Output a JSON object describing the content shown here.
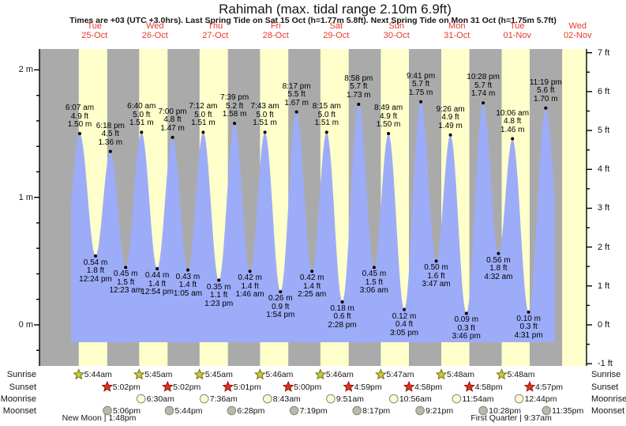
{
  "header": {
    "title": "Rahimah (max. tidal range 2.10m 6.9ft)",
    "subtitle": "Times are +03 (UTC +3.0hrs). Last Spring Tide on Sat 15 Oct (h=1.77m 5.8ft). Next Spring Tide on Mon 31 Oct (h=1.75m 5.7ft)"
  },
  "days": [
    {
      "name": "Tue",
      "date": "25-Oct"
    },
    {
      "name": "Wed",
      "date": "26-Oct"
    },
    {
      "name": "Thu",
      "date": "27-Oct"
    },
    {
      "name": "Fri",
      "date": "28-Oct"
    },
    {
      "name": "Sat",
      "date": "29-Oct"
    },
    {
      "name": "Sun",
      "date": "30-Oct"
    },
    {
      "name": "Mon",
      "date": "31-Oct"
    },
    {
      "name": "Tue",
      "date": "01-Nov"
    },
    {
      "name": "Wed",
      "date": "02-Nov"
    }
  ],
  "axes": {
    "left_labels": [
      {
        "value": 2,
        "text": "2 m"
      },
      {
        "value": 1,
        "text": "1 m"
      },
      {
        "value": 0,
        "text": "0 m"
      }
    ],
    "right_labels": [
      {
        "value": 7,
        "text": "7 ft"
      },
      {
        "value": 6,
        "text": "6 ft"
      },
      {
        "value": 5,
        "text": "5 ft"
      },
      {
        "value": 4,
        "text": "4 ft"
      },
      {
        "value": 3,
        "text": "3 ft"
      },
      {
        "value": 2,
        "text": "2 ft"
      },
      {
        "value": 1,
        "text": "1 ft"
      },
      {
        "value": 0,
        "text": "0 ft"
      },
      {
        "value": -1,
        "text": "-1 ft"
      }
    ]
  },
  "chart_data": {
    "type": "area",
    "title": "Rahimah (max. tidal range 2.10m 6.9ft)",
    "x_axis_days": [
      "Tue 25-Oct",
      "Wed 26-Oct",
      "Thu 27-Oct",
      "Fri 28-Oct",
      "Sat 29-Oct",
      "Sun 30-Oct",
      "Mon 31-Oct",
      "Tue 01-Nov",
      "Wed 02-Nov"
    ],
    "ylabel_left": "meters",
    "ylabel_right": "feet",
    "ylim_m": [
      -0.32,
      2.16
    ],
    "ylim_ft": [
      -1,
      7
    ],
    "grid": false,
    "tide_events": [
      {
        "day": 0,
        "hours": 6.117,
        "time": "6:07 am",
        "m": "1.50 m",
        "ft": "4.9 ft",
        "height_m": 1.5,
        "type": "high"
      },
      {
        "day": 0,
        "hours": 12.4,
        "time": "12:24 pm",
        "m": "0.54 m",
        "ft": "1.8 ft",
        "height_m": 0.54,
        "type": "low"
      },
      {
        "day": 0,
        "hours": 18.3,
        "time": "6:18 pm",
        "m": "1.36 m",
        "ft": "4.5 ft",
        "height_m": 1.36,
        "type": "high"
      },
      {
        "day": 1,
        "hours": 0.383,
        "time": "12:23 am",
        "m": "0.45 m",
        "ft": "1.5 ft",
        "height_m": 0.45,
        "type": "low"
      },
      {
        "day": 1,
        "hours": 6.667,
        "time": "6:40 am",
        "m": "1.51 m",
        "ft": "5.0 ft",
        "height_m": 1.51,
        "type": "high"
      },
      {
        "day": 1,
        "hours": 12.9,
        "time": "12:54 pm",
        "m": "0.44 m",
        "ft": "1.4 ft",
        "height_m": 0.44,
        "type": "low"
      },
      {
        "day": 1,
        "hours": 19.0,
        "time": "7:00 pm",
        "m": "1.47 m",
        "ft": "4.8 ft",
        "height_m": 1.47,
        "type": "high"
      },
      {
        "day": 2,
        "hours": 1.083,
        "time": "1:05 am",
        "m": "0.43 m",
        "ft": "1.4 ft",
        "height_m": 0.43,
        "type": "low"
      },
      {
        "day": 2,
        "hours": 7.2,
        "time": "7:12 am",
        "m": "1.51 m",
        "ft": "5.0 ft",
        "height_m": 1.51,
        "type": "high"
      },
      {
        "day": 2,
        "hours": 13.383,
        "time": "1:23 pm",
        "m": "0.35 m",
        "ft": "1.1 ft",
        "height_m": 0.35,
        "type": "low"
      },
      {
        "day": 2,
        "hours": 19.65,
        "time": "7:39 pm",
        "m": "1.58 m",
        "ft": "5.2 ft",
        "height_m": 1.58,
        "type": "high"
      },
      {
        "day": 3,
        "hours": 1.767,
        "time": "1:46 am",
        "m": "0.42 m",
        "ft": "1.4 ft",
        "height_m": 0.42,
        "type": "low"
      },
      {
        "day": 3,
        "hours": 7.717,
        "time": "7:43 am",
        "m": "1.51 m",
        "ft": "5.0 ft",
        "height_m": 1.51,
        "type": "high"
      },
      {
        "day": 3,
        "hours": 13.9,
        "time": "1:54 pm",
        "m": "0.26 m",
        "ft": "0.9 ft",
        "height_m": 0.26,
        "type": "low"
      },
      {
        "day": 3,
        "hours": 20.283,
        "time": "8:17 pm",
        "m": "1.67 m",
        "ft": "5.5 ft",
        "height_m": 1.67,
        "type": "high"
      },
      {
        "day": 4,
        "hours": 2.417,
        "time": "2:25 am",
        "m": "0.42 m",
        "ft": "1.4 ft",
        "height_m": 0.42,
        "type": "low"
      },
      {
        "day": 4,
        "hours": 8.25,
        "time": "8:15 am",
        "m": "1.51 m",
        "ft": "5.0 ft",
        "height_m": 1.51,
        "type": "high"
      },
      {
        "day": 4,
        "hours": 14.467,
        "time": "2:28 pm",
        "m": "0.18 m",
        "ft": "0.6 ft",
        "height_m": 0.18,
        "type": "low"
      },
      {
        "day": 4,
        "hours": 20.967,
        "time": "8:58 pm",
        "m": "1.73 m",
        "ft": "5.7 ft",
        "height_m": 1.73,
        "type": "high"
      },
      {
        "day": 5,
        "hours": 3.1,
        "time": "3:06 am",
        "m": "0.45 m",
        "ft": "1.5 ft",
        "height_m": 0.45,
        "type": "low"
      },
      {
        "day": 5,
        "hours": 8.817,
        "time": "8:49 am",
        "m": "1.50 m",
        "ft": "4.9 ft",
        "height_m": 1.5,
        "type": "high"
      },
      {
        "day": 5,
        "hours": 15.083,
        "time": "3:05 pm",
        "m": "0.12 m",
        "ft": "0.4 ft",
        "height_m": 0.12,
        "type": "low"
      },
      {
        "day": 5,
        "hours": 21.683,
        "time": "9:41 pm",
        "m": "1.75 m",
        "ft": "5.7 ft",
        "height_m": 1.75,
        "type": "high"
      },
      {
        "day": 6,
        "hours": 3.783,
        "time": "3:47 am",
        "m": "0.50 m",
        "ft": "1.6 ft",
        "height_m": 0.5,
        "type": "low"
      },
      {
        "day": 6,
        "hours": 9.433,
        "time": "9:26 am",
        "m": "1.49 m",
        "ft": "4.9 ft",
        "height_m": 1.49,
        "type": "high"
      },
      {
        "day": 6,
        "hours": 15.767,
        "time": "3:46 pm",
        "m": "0.09 m",
        "ft": "0.3 ft",
        "height_m": 0.09,
        "type": "low"
      },
      {
        "day": 6,
        "hours": 22.467,
        "time": "10:28 pm",
        "m": "1.74 m",
        "ft": "5.7 ft",
        "height_m": 1.74,
        "type": "high"
      },
      {
        "day": 7,
        "hours": 4.533,
        "time": "4:32 am",
        "m": "0.56 m",
        "ft": "1.8 ft",
        "height_m": 0.56,
        "type": "low"
      },
      {
        "day": 7,
        "hours": 10.1,
        "time": "10:06 am",
        "m": "1.46 m",
        "ft": "4.8 ft",
        "height_m": 1.46,
        "type": "high"
      },
      {
        "day": 7,
        "hours": 16.517,
        "time": "4:31 pm",
        "m": "0.10 m",
        "ft": "0.3 ft",
        "height_m": 0.1,
        "type": "low"
      },
      {
        "day": 7,
        "hours": 23.317,
        "time": "11:19 pm",
        "m": "1.70 m",
        "ft": "5.6 ft",
        "height_m": 1.7,
        "type": "high"
      }
    ]
  },
  "astro": {
    "rows": [
      {
        "id": "sunrise",
        "label": "Sunrise",
        "icon": "star",
        "events": [
          {
            "day": 0,
            "hours": 5.733,
            "time": "5:44am"
          },
          {
            "day": 1,
            "hours": 5.75,
            "time": "5:45am"
          },
          {
            "day": 2,
            "hours": 5.75,
            "time": "5:45am"
          },
          {
            "day": 3,
            "hours": 5.767,
            "time": "5:46am"
          },
          {
            "day": 4,
            "hours": 5.767,
            "time": "5:46am"
          },
          {
            "day": 5,
            "hours": 5.783,
            "time": "5:47am"
          },
          {
            "day": 6,
            "hours": 5.8,
            "time": "5:48am"
          },
          {
            "day": 7,
            "hours": 5.8,
            "time": "5:48am"
          }
        ]
      },
      {
        "id": "sunset",
        "label": "Sunset",
        "icon": "star",
        "events": [
          {
            "day": 0,
            "hours": 17.033,
            "time": "5:02pm"
          },
          {
            "day": 1,
            "hours": 17.033,
            "time": "5:02pm"
          },
          {
            "day": 2,
            "hours": 17.017,
            "time": "5:01pm"
          },
          {
            "day": 3,
            "hours": 17.0,
            "time": "5:00pm"
          },
          {
            "day": 4,
            "hours": 16.983,
            "time": "4:59pm"
          },
          {
            "day": 5,
            "hours": 16.967,
            "time": "4:58pm"
          },
          {
            "day": 6,
            "hours": 16.967,
            "time": "4:58pm"
          },
          {
            "day": 7,
            "hours": 16.95,
            "time": "4:57pm"
          }
        ]
      },
      {
        "id": "moonrise",
        "label": "Moonrise",
        "icon": "circle",
        "events": [
          {
            "day": 1,
            "hours": 6.5,
            "time": "6:30am"
          },
          {
            "day": 2,
            "hours": 7.6,
            "time": "7:36am"
          },
          {
            "day": 3,
            "hours": 8.717,
            "time": "8:43am"
          },
          {
            "day": 4,
            "hours": 9.85,
            "time": "9:51am"
          },
          {
            "day": 5,
            "hours": 10.933,
            "time": "10:56am"
          },
          {
            "day": 6,
            "hours": 11.9,
            "time": "11:54am"
          },
          {
            "day": 7,
            "hours": 12.733,
            "time": "12:44pm"
          }
        ]
      },
      {
        "id": "moonset",
        "label": "Moonset",
        "icon": "circle",
        "events": [
          {
            "day": 0,
            "hours": 17.1,
            "time": "5:06pm"
          },
          {
            "day": 1,
            "hours": 17.733,
            "time": "5:44pm"
          },
          {
            "day": 2,
            "hours": 18.467,
            "time": "6:28pm"
          },
          {
            "day": 3,
            "hours": 19.317,
            "time": "7:19pm"
          },
          {
            "day": 4,
            "hours": 20.283,
            "time": "8:17pm"
          },
          {
            "day": 5,
            "hours": 21.35,
            "time": "9:21pm"
          },
          {
            "day": 6,
            "hours": 22.467,
            "time": "10:28pm"
          },
          {
            "day": 7,
            "hours": 23.583,
            "time": "11:35pm"
          }
        ]
      }
    ],
    "moon_phases": [
      {
        "label": "New Moon",
        "time": "1:48pm",
        "day": 0,
        "hours": 13.8
      },
      {
        "label": "First Quarter",
        "time": "9:37am",
        "day": 7,
        "hours": 9.617
      }
    ]
  },
  "colors": {
    "night_band": "#aaaaaa",
    "day_band": "#ffffcc",
    "tide_fill": "#9dacf8",
    "dot": "#000000",
    "axis": "#000000",
    "day_label": "#e8372b",
    "sunrise_star": "#c9c93a",
    "sunrise_star_border": "#6f6f14",
    "sunset_star": "#e03020",
    "sunset_star_border": "#8e1a0a",
    "moonrise_circle": "#fbfad4",
    "moonset_circle": "#b9b9ab",
    "moon_circle_border": "#87877d"
  }
}
